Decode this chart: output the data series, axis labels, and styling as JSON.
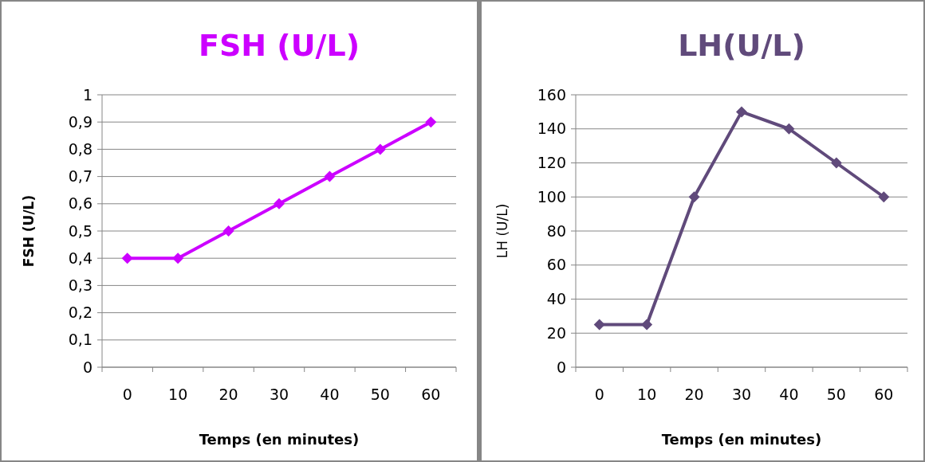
{
  "chart_data": [
    {
      "type": "line",
      "title": "FSH (U/L)",
      "xlabel": "Temps (en minutes)",
      "ylabel": "FSH (U/L)",
      "categories": [
        "0",
        "10",
        "20",
        "30",
        "40",
        "50",
        "60"
      ],
      "series": [
        {
          "color": "#cc00ff",
          "values": [
            0.4,
            0.4,
            0.5,
            0.6,
            0.7,
            0.8,
            0.9
          ]
        }
      ],
      "ylim": [
        0,
        1
      ],
      "yticks": [
        0,
        {
          "value": 0.1,
          "label": "0,1"
        },
        {
          "value": 0.2,
          "label": "0,2"
        },
        {
          "value": 0.3,
          "label": "0,3"
        },
        {
          "value": 0.4,
          "label": "0,4"
        },
        {
          "value": 0.5,
          "label": "0,5"
        },
        {
          "value": 0.6,
          "label": "0,6"
        },
        {
          "value": 0.7,
          "label": "0,7"
        },
        {
          "value": 0.8,
          "label": "0,8"
        },
        {
          "value": 0.9,
          "label": "0,9"
        },
        1
      ],
      "grid": "y",
      "marker": "diamond",
      "line_style": "solid"
    },
    {
      "type": "line",
      "title": "LH(U/L)",
      "xlabel": "Temps (en minutes)",
      "ylabel": "LH (U/L)",
      "categories": [
        "0",
        "10",
        "20",
        "30",
        "40",
        "50",
        "60"
      ],
      "series": [
        {
          "color": "#604a7b",
          "values": [
            25,
            25,
            100,
            150,
            140,
            120,
            100
          ]
        }
      ],
      "ylim": [
        0,
        160
      ],
      "yticks": [
        0,
        20,
        40,
        60,
        80,
        100,
        120,
        140,
        160
      ],
      "grid": "y",
      "marker": "diamond",
      "line_style": "solid"
    }
  ]
}
